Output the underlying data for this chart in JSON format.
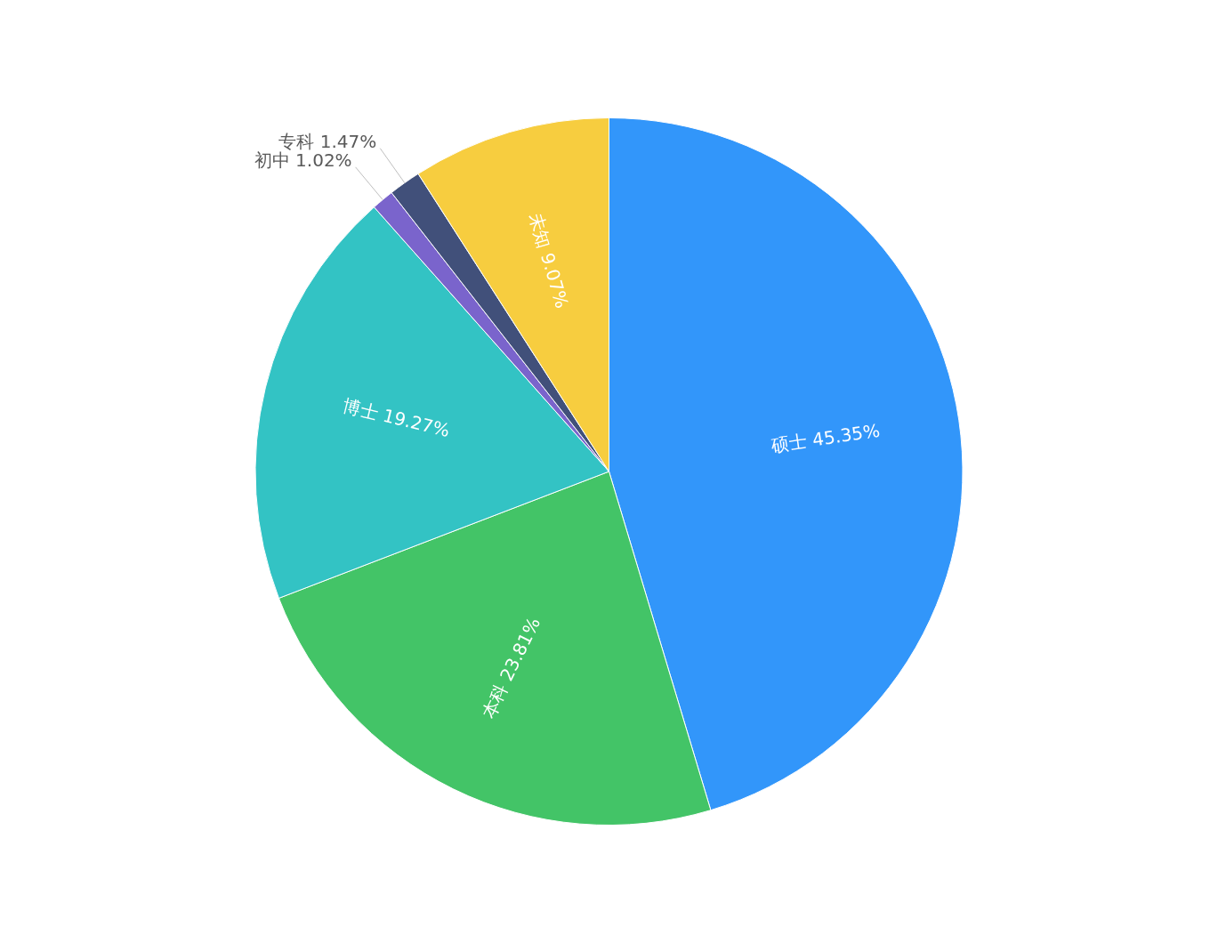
{
  "chart_data": {
    "type": "pie",
    "categories": [
      "硕士",
      "本科",
      "博士",
      "初中",
      "专科",
      "未知"
    ],
    "values": [
      45.35,
      23.81,
      19.27,
      1.02,
      1.47,
      9.07
    ],
    "colors": [
      "#3296fa",
      "#43c467",
      "#33c3c4",
      "#7a64cc",
      "#41507a",
      "#f7cd3f"
    ],
    "value_labels": [
      "45.35%",
      "23.81%",
      "19.27%",
      "1.02%",
      "1.47%",
      "9.07%"
    ],
    "legend": false
  }
}
